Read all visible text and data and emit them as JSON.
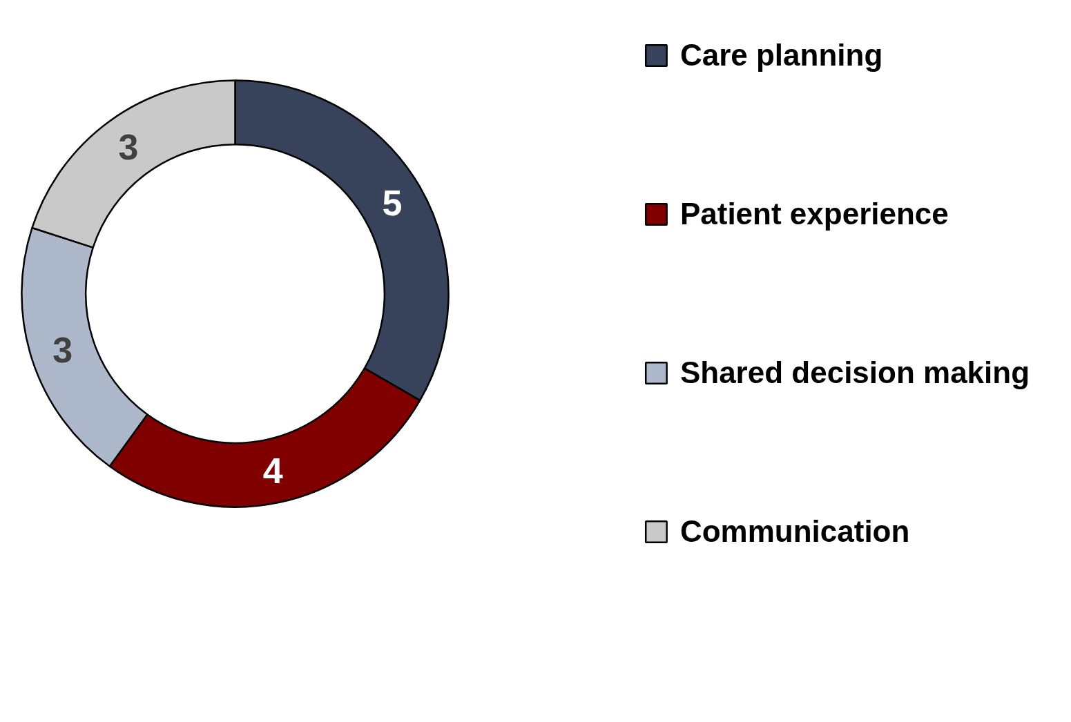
{
  "chart_data": {
    "type": "donut",
    "categories": [
      "Care planning",
      "Patient experience",
      "Shared decision making",
      "Communication"
    ],
    "values": [
      5,
      4,
      3,
      3
    ],
    "colors": [
      "#37435a",
      "#800000",
      "#adb9ca",
      "#c9c9c9"
    ],
    "data_labels": true,
    "legend": "right"
  }
}
